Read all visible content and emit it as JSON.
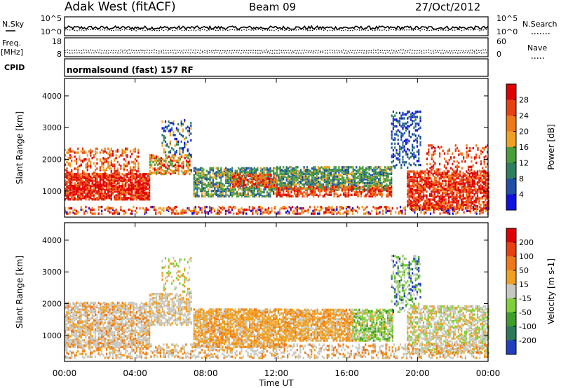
{
  "header": {
    "station": "Adak West (fitACF)",
    "beam": "Beam 09",
    "date": "27/Oct/2012"
  },
  "status_panels": {
    "left_labels": {
      "nsky": "N.Sky",
      "freq_line1": "Freq.",
      "freq_line2": "[MHz]",
      "cpid": "CPID"
    },
    "right_labels": {
      "nsearch": "N.Search",
      "nave": "Nave"
    },
    "noise_ticks_left": [
      "10^5",
      "10^0"
    ],
    "noise_ticks_right": [
      "10^5",
      "10^0"
    ],
    "freq_ticks": [
      "18",
      "8"
    ],
    "nave_ticks": [
      "60",
      "0"
    ],
    "cpid_text": "normalsound (fast) 157 RF",
    "noise_sky_level": 0.42,
    "noise_search_level": 0.3,
    "freq_level": 0.33,
    "nave_level": 0.2
  },
  "colors": {
    "power_scale": [
      "#1010e0",
      "#1f4fa8",
      "#2e7f60",
      "#4a9e3a",
      "#f0a020",
      "#f07818",
      "#e84010",
      "#e00000"
    ],
    "velocity_scale": [
      "#2040c0",
      "#2c7a5a",
      "#3f9e2a",
      "#7fcf3a",
      "#c8c8c0",
      "#f0a020",
      "#f07818",
      "#e84010",
      "#e00000"
    ]
  },
  "chart_data": [
    {
      "type": "heatmap",
      "title": "Power",
      "xlabel": "Time UT",
      "ylabel": "Slant Range [km]",
      "x_ticks": [
        "00:00",
        "04:00",
        "08:00",
        "12:00",
        "16:00",
        "20:00",
        "00:00"
      ],
      "x_range_hours": [
        0,
        24
      ],
      "y_ticks": [
        1000,
        2000,
        3000,
        4000
      ],
      "y_range_km": [
        180,
        4550
      ],
      "colorbar_label": "Power [dB]",
      "colorbar_ticks": [
        "4",
        "8",
        "12",
        "16",
        "20",
        "24",
        "28"
      ],
      "colorbar_range": [
        0,
        32
      ]
    },
    {
      "type": "heatmap",
      "title": "Velocity",
      "xlabel": "Time UT",
      "ylabel": "Slant Range [km]",
      "x_ticks": [
        "00:00",
        "04:00",
        "08:00",
        "12:00",
        "16:00",
        "20:00",
        "00:00"
      ],
      "x_range_hours": [
        0,
        24
      ],
      "y_ticks": [
        1000,
        2000,
        3000,
        4000
      ],
      "y_range_km": [
        180,
        4550
      ],
      "colorbar_label": "Velocity [m s-1]",
      "colorbar_ticks": [
        "200",
        "100",
        "50",
        "15",
        "-15",
        "-50",
        "-100",
        "-200"
      ],
      "colorbar_range": [
        -250,
        250
      ]
    }
  ]
}
